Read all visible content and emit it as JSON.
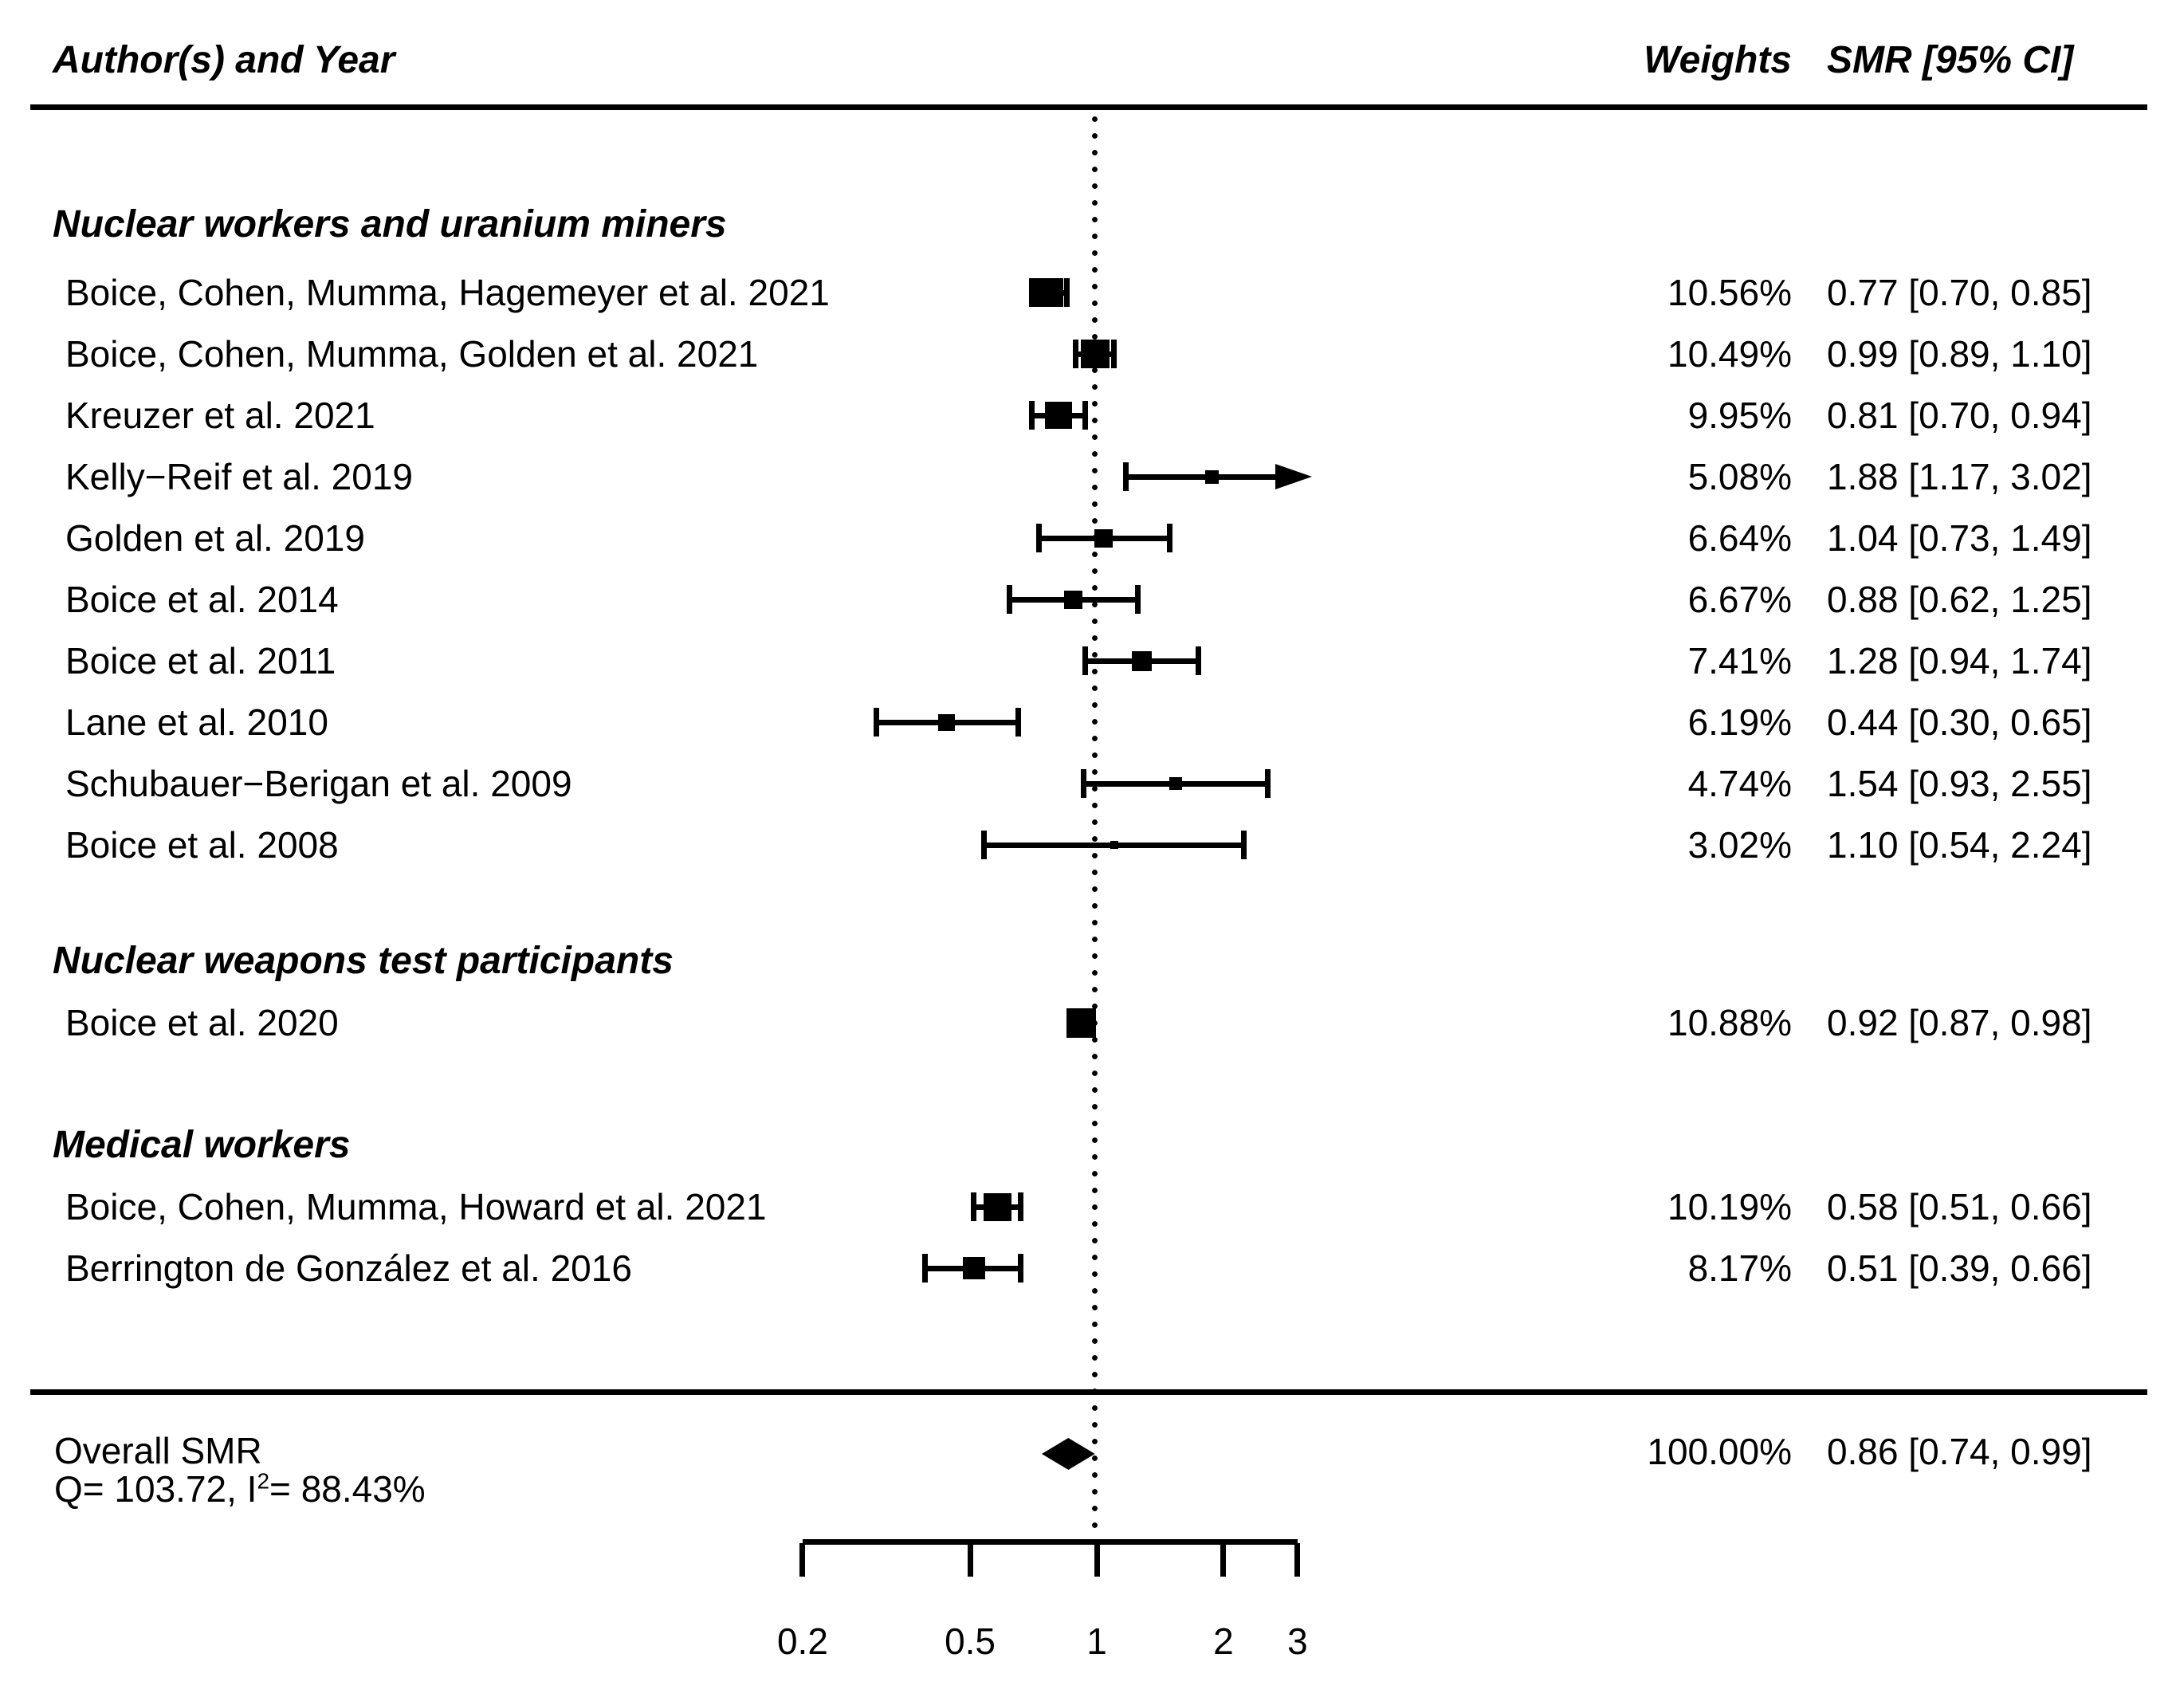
{
  "title_row": {
    "author_col": "Author(s) and Year",
    "weights_col": "Weights",
    "smr_col": "SMR [95% CI]"
  },
  "chart_data": {
    "type": "forest",
    "x_scale": "log10",
    "x_ticks": [
      0.2,
      0.5,
      1,
      2,
      3
    ],
    "x_tick_labels": [
      "0.2",
      "0.5",
      "1",
      "2",
      "3"
    ],
    "reference_line": 1,
    "xlim": [
      0.2,
      3
    ],
    "groups": [
      {
        "heading": "Nuclear workers and uranium miners",
        "studies": [
          {
            "label": "Boice, Cohen, Mumma, Hagemeyer et al. 2021",
            "weight_pct": 10.56,
            "weight_label": "10.56%",
            "smr": 0.77,
            "ci_low": 0.7,
            "ci_high": 0.85,
            "smr_label": "0.77 [0.70, 0.85]",
            "arrow_high": false
          },
          {
            "label": "Boice, Cohen, Mumma, Golden et al. 2021",
            "weight_pct": 10.49,
            "weight_label": "10.49%",
            "smr": 0.99,
            "ci_low": 0.89,
            "ci_high": 1.1,
            "smr_label": "0.99 [0.89, 1.10]",
            "arrow_high": false
          },
          {
            "label": "Kreuzer et al. 2021",
            "weight_pct": 9.95,
            "weight_label": "9.95%",
            "smr": 0.81,
            "ci_low": 0.7,
            "ci_high": 0.94,
            "smr_label": "0.81 [0.70, 0.94]",
            "arrow_high": false
          },
          {
            "label": "Kelly−Reif et al. 2019",
            "weight_pct": 5.08,
            "weight_label": "5.08%",
            "smr": 1.88,
            "ci_low": 1.17,
            "ci_high": 3.02,
            "smr_label": "1.88 [1.17, 3.02]",
            "arrow_high": true
          },
          {
            "label": "Golden et al. 2019",
            "weight_pct": 6.64,
            "weight_label": "6.64%",
            "smr": 1.04,
            "ci_low": 0.73,
            "ci_high": 1.49,
            "smr_label": "1.04 [0.73, 1.49]",
            "arrow_high": false
          },
          {
            "label": "Boice et al. 2014",
            "weight_pct": 6.67,
            "weight_label": "6.67%",
            "smr": 0.88,
            "ci_low": 0.62,
            "ci_high": 1.25,
            "smr_label": "0.88 [0.62, 1.25]",
            "arrow_high": false
          },
          {
            "label": "Boice et al. 2011",
            "weight_pct": 7.41,
            "weight_label": "7.41%",
            "smr": 1.28,
            "ci_low": 0.94,
            "ci_high": 1.74,
            "smr_label": "1.28 [0.94, 1.74]",
            "arrow_high": false
          },
          {
            "label": "Lane et al. 2010",
            "weight_pct": 6.19,
            "weight_label": "6.19%",
            "smr": 0.44,
            "ci_low": 0.3,
            "ci_high": 0.65,
            "smr_label": "0.44 [0.30, 0.65]",
            "arrow_high": false
          },
          {
            "label": "Schubauer−Berigan et al. 2009",
            "weight_pct": 4.74,
            "weight_label": "4.74%",
            "smr": 1.54,
            "ci_low": 0.93,
            "ci_high": 2.55,
            "smr_label": "1.54 [0.93, 2.55]",
            "arrow_high": false
          },
          {
            "label": "Boice et al. 2008",
            "weight_pct": 3.02,
            "weight_label": "3.02%",
            "smr": 1.1,
            "ci_low": 0.54,
            "ci_high": 2.24,
            "smr_label": "1.10 [0.54, 2.24]",
            "arrow_high": false
          }
        ]
      },
      {
        "heading": "Nuclear weapons test participants",
        "studies": [
          {
            "label": "Boice et al. 2020",
            "weight_pct": 10.88,
            "weight_label": "10.88%",
            "smr": 0.92,
            "ci_low": 0.87,
            "ci_high": 0.98,
            "smr_label": "0.92 [0.87, 0.98]",
            "arrow_high": false
          }
        ]
      },
      {
        "heading": "Medical workers",
        "studies": [
          {
            "label": "Boice, Cohen, Mumma, Howard et al. 2021",
            "weight_pct": 10.19,
            "weight_label": "10.19%",
            "smr": 0.58,
            "ci_low": 0.51,
            "ci_high": 0.66,
            "smr_label": "0.58 [0.51, 0.66]",
            "arrow_high": false
          },
          {
            "label": "Berrington de González et al. 2016",
            "weight_pct": 8.17,
            "weight_label": "8.17%",
            "smr": 0.51,
            "ci_low": 0.39,
            "ci_high": 0.66,
            "smr_label": "0.51 [0.39, 0.66]",
            "arrow_high": false
          }
        ]
      }
    ],
    "overall": {
      "label": "Overall SMR",
      "q_prefix": "Q= 103.72, I",
      "q_sup": "2",
      "q_suffix": "= 88.43%",
      "weight_label": "100.00%",
      "smr": 0.86,
      "ci_low": 0.74,
      "ci_high": 0.99,
      "smr_label": "0.86 [0.74, 0.99]"
    }
  }
}
